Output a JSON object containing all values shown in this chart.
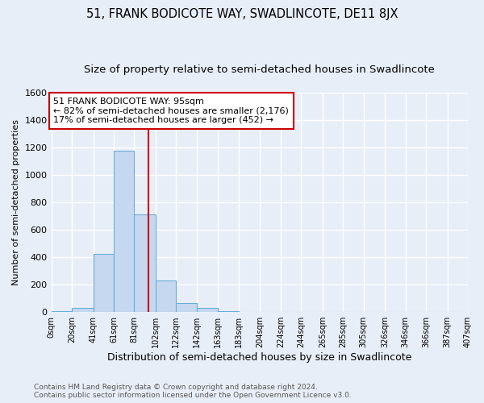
{
  "title": "51, FRANK BODICOTE WAY, SWADLINCOTE, DE11 8JX",
  "subtitle": "Size of property relative to semi-detached houses in Swadlincote",
  "xlabel": "Distribution of semi-detached houses by size in Swadlincote",
  "ylabel": "Number of semi-detached properties",
  "footnote1": "Contains HM Land Registry data © Crown copyright and database right 2024.",
  "footnote2": "Contains public sector information licensed under the Open Government Licence v3.0.",
  "bin_edges": [
    0,
    20,
    41,
    61,
    81,
    102,
    122,
    142,
    163,
    183,
    204,
    224,
    244,
    265,
    285,
    305,
    326,
    346,
    366,
    387,
    407
  ],
  "bin_labels": [
    "0sqm",
    "20sqm",
    "41sqm",
    "61sqm",
    "81sqm",
    "102sqm",
    "122sqm",
    "142sqm",
    "163sqm",
    "183sqm",
    "204sqm",
    "224sqm",
    "244sqm",
    "265sqm",
    "285sqm",
    "305sqm",
    "326sqm",
    "346sqm",
    "366sqm",
    "387sqm",
    "407sqm"
  ],
  "counts": [
    10,
    30,
    425,
    1175,
    710,
    230,
    65,
    30,
    10,
    0,
    0,
    0,
    0,
    0,
    0,
    0,
    0,
    0,
    0,
    0
  ],
  "property_line_x": 95,
  "bar_color": "#c5d8f0",
  "bar_edge_color": "#6aaed6",
  "line_color": "#cc0000",
  "annotation_text": "51 FRANK BODICOTE WAY: 95sqm\n← 82% of semi-detached houses are smaller (2,176)\n17% of semi-detached houses are larger (452) →",
  "annotation_box_color": "#ffffff",
  "annotation_box_edge": "#cc0000",
  "ylim": [
    0,
    1600
  ],
  "yticks": [
    0,
    200,
    400,
    600,
    800,
    1000,
    1200,
    1400,
    1600
  ],
  "background_color": "#e8eef8",
  "grid_color": "#ffffff",
  "title_fontsize": 10.5,
  "subtitle_fontsize": 9.5
}
